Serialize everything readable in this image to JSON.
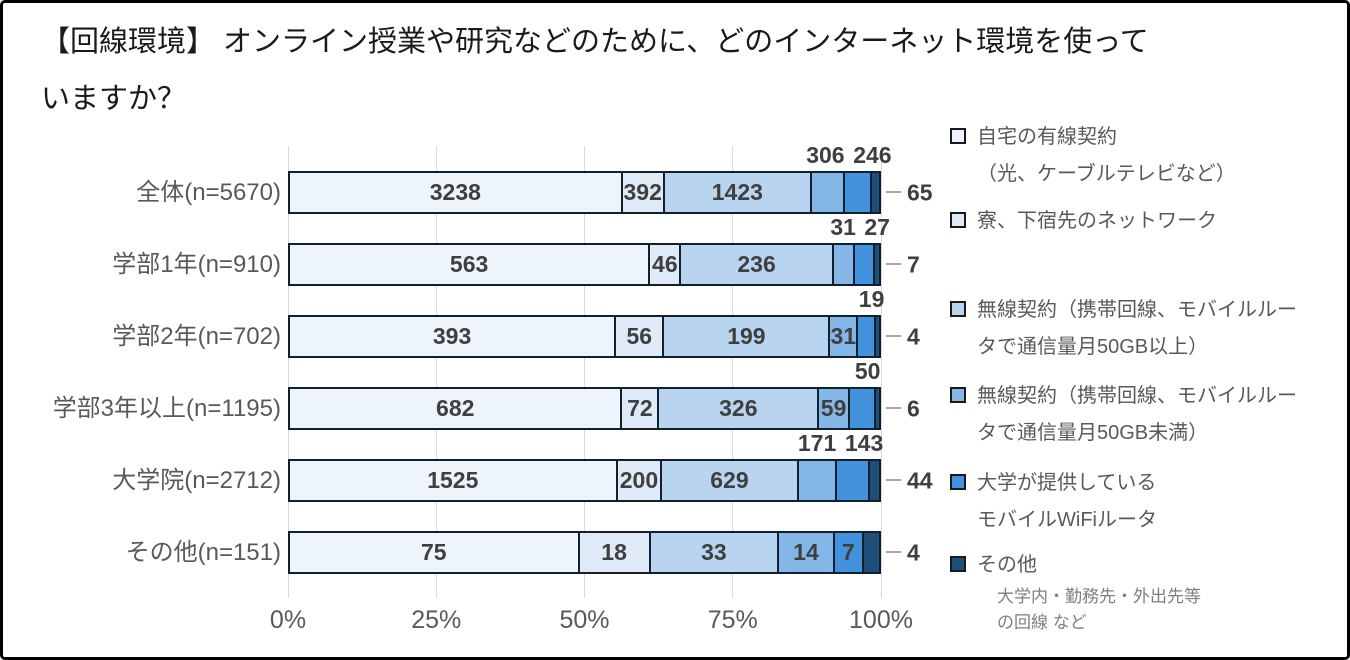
{
  "title_lines": [
    "【回線環境】 オンライン授業や研究などのために、どのインターネット環境を使って",
    "いますか？"
  ],
  "chart_data": {
    "type": "bar",
    "orientation": "horizontal",
    "stacked": true,
    "normalized": "100%",
    "categories": [
      "全体(n=5670)",
      "学部1年(n=910)",
      "学部2年(n=702)",
      "学部3年以上(n=1195)",
      "大学院(n=2712)",
      "その他(n=151)"
    ],
    "totals": [
      5670,
      910,
      702,
      1195,
      2712,
      151
    ],
    "series": [
      {
        "name": "自宅の有線契約（光、ケーブルテレビなど）",
        "color": "#EDF4FB",
        "values": [
          3238,
          563,
          393,
          682,
          1525,
          75
        ]
      },
      {
        "name": "寮、下宿先のネットワーク",
        "color": "#DEEAF6",
        "values": [
          392,
          46,
          56,
          72,
          200,
          18
        ]
      },
      {
        "name": "無線契約（携帯回線、モバイルルータで通信量月50GB以上）",
        "color": "#B8D4EF",
        "values": [
          1423,
          236,
          199,
          326,
          629,
          33
        ]
      },
      {
        "name": "無線契約（携帯回線、モバイルルータで通信量月50GB未満）",
        "color": "#84B6E8",
        "values": [
          306,
          31,
          31,
          59,
          171,
          14
        ]
      },
      {
        "name": "大学が提供しているモバイルWiFiルータ",
        "color": "#4292DE",
        "values": [
          246,
          27,
          19,
          50,
          143,
          7
        ]
      },
      {
        "name": "その他",
        "color": "#1F4E79",
        "values": [
          65,
          7,
          4,
          6,
          44,
          4
        ]
      }
    ],
    "label_placement": [
      [
        "in",
        "in",
        "in",
        "above",
        "above",
        "out"
      ],
      [
        "in",
        "in",
        "in",
        "above",
        "above",
        "out"
      ],
      [
        "in",
        "in",
        "in",
        "in",
        "above",
        "out"
      ],
      [
        "in",
        "in",
        "in",
        "in",
        "above",
        "out"
      ],
      [
        "in",
        "in",
        "in",
        "above",
        "above",
        "out"
      ],
      [
        "in",
        "in",
        "in",
        "in",
        "in",
        "out"
      ]
    ],
    "x_ticks": [
      "0%",
      "25%",
      "50%",
      "75%",
      "100%"
    ],
    "xlim": [
      0,
      100
    ],
    "grid": true,
    "legend_position": "right"
  },
  "legend": {
    "items": [
      {
        "color": "#EDF4FB",
        "lines": [
          "自宅の有線契約",
          "（光、ケーブルテレビなど）"
        ]
      },
      {
        "color": "#DEEAF6",
        "lines": [
          "寮、下宿先のネットワーク"
        ]
      },
      {
        "color": "#B8D4EF",
        "lines": [
          "無線契約（携帯回線、モバイルルー",
          "タで通信量月50GB以上）"
        ]
      },
      {
        "color": "#84B6E8",
        "lines": [
          "無線契約（携帯回線、モバイルルー",
          "タで通信量月50GB未満）"
        ]
      },
      {
        "color": "#4292DE",
        "lines": [
          "大学が提供している",
          "モバイルWiFiルータ"
        ]
      },
      {
        "color": "#1F4E79",
        "lines": [
          "その他"
        ],
        "note_lines": [
          "大学内・勤務先・外出先等",
          "の回線 など"
        ]
      }
    ]
  },
  "colors": {
    "background": "#ffffff",
    "frame_border": "#000000",
    "bar_border": "#10202e",
    "gridline": "#d9d9d9",
    "label_text": "#3f3f3f",
    "axis_text": "#595959",
    "legend_text": "#595959",
    "note_text": "#7f7f7f",
    "leader_line": "#a6a6a6"
  }
}
